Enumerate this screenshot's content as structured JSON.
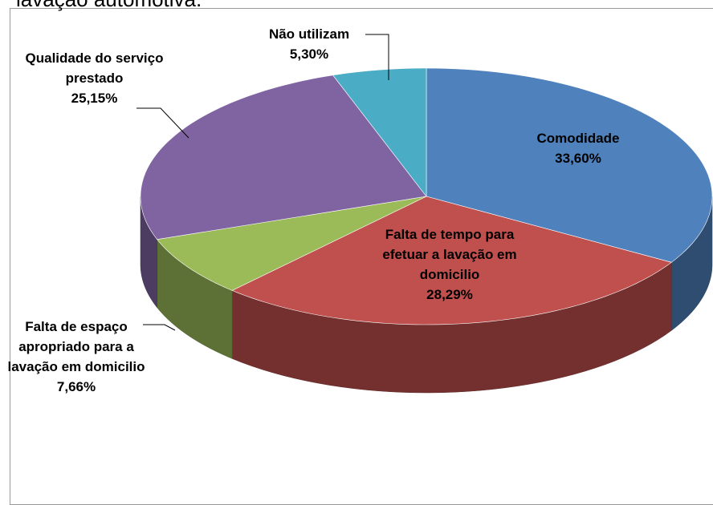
{
  "chart_data": {
    "type": "pie3d",
    "title": "lavação automotiva.",
    "categories": [
      "Comodidade",
      "Falta de tempo para efetuar a lavação em domicilio",
      "Falta de espaço apropriado para a lavação em domicilio",
      "Qualidade do serviço prestado",
      "Não utilizam"
    ],
    "values": [
      33.6,
      28.29,
      7.66,
      25.15,
      5.3
    ],
    "value_labels": [
      "33,60%",
      "28,29%",
      "7,66%",
      "25,15%",
      "5,30%"
    ],
    "colors": [
      "#4f81bd",
      "#c0504d",
      "#9bbb59",
      "#8064a2",
      "#4bacc6"
    ]
  }
}
